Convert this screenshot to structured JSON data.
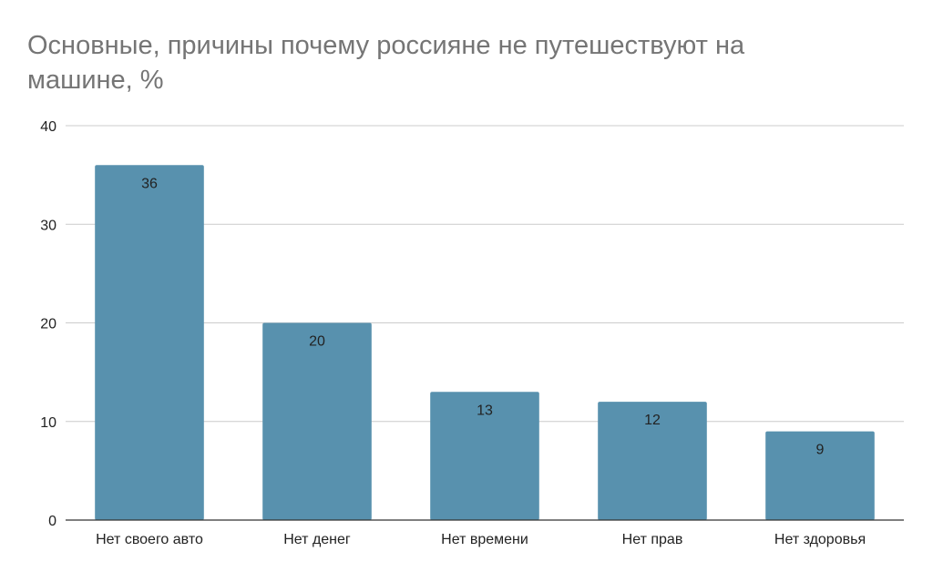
{
  "chart_data": {
    "type": "bar",
    "title": "Основные, причины почему россияне не путешествуют на машине, %",
    "categories": [
      "Нет своего авто",
      "Нет денег",
      "Нет времени",
      "Нет прав",
      "Нет здоровья"
    ],
    "values": [
      36,
      20,
      13,
      12,
      9
    ],
    "data_labels": [
      "36",
      "20",
      "13",
      "12",
      "9"
    ],
    "xlabel": "",
    "ylabel": "",
    "ylim": [
      0,
      40
    ],
    "yticks": [
      0,
      10,
      20,
      30,
      40
    ],
    "grid": true,
    "legend": "none",
    "bar_color": "#5891ae"
  }
}
